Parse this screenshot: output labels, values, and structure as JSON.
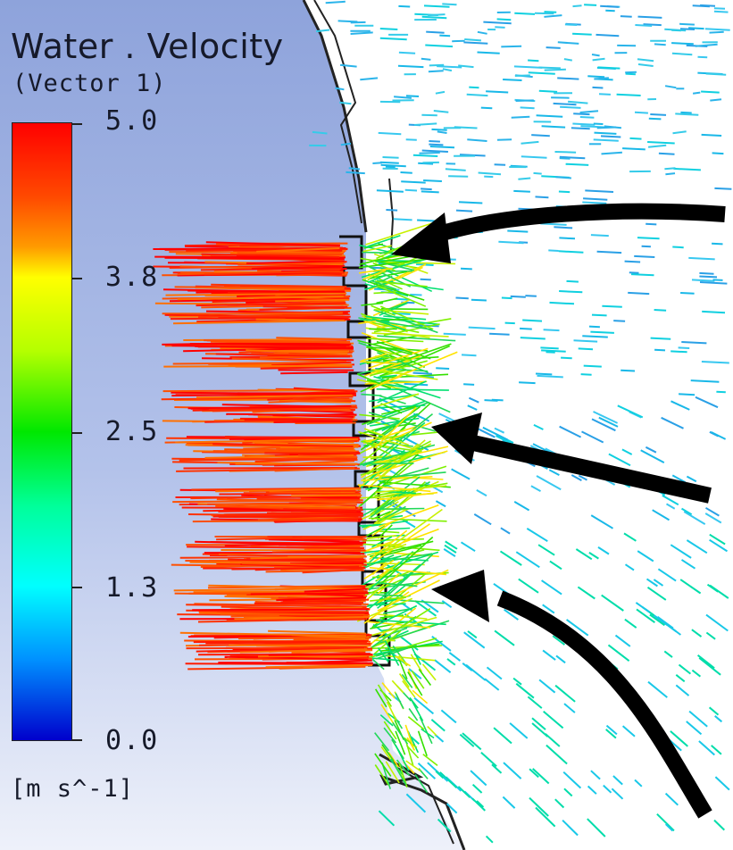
{
  "legend": {
    "title": "Water . Velocity",
    "subtitle": "(Vector  1)",
    "unit": "[m  s^-1]",
    "ticks": [
      "5.0",
      "3.8",
      "2.5",
      "1.3",
      "0.0"
    ],
    "colormap": [
      "#ff0000",
      "#ff9a00",
      "#ffff00",
      "#00e800",
      "#00ffff",
      "#0000cc"
    ]
  },
  "colors": {
    "wall_background": "#a7b7e2",
    "flow_arrow": "#000000",
    "boundary_line": "#222222"
  },
  "elements": {
    "nozzle_rows": 9,
    "annotation_arrows": [
      "flow-arrow-top",
      "flow-arrow-middle",
      "flow-arrow-bottom"
    ]
  }
}
